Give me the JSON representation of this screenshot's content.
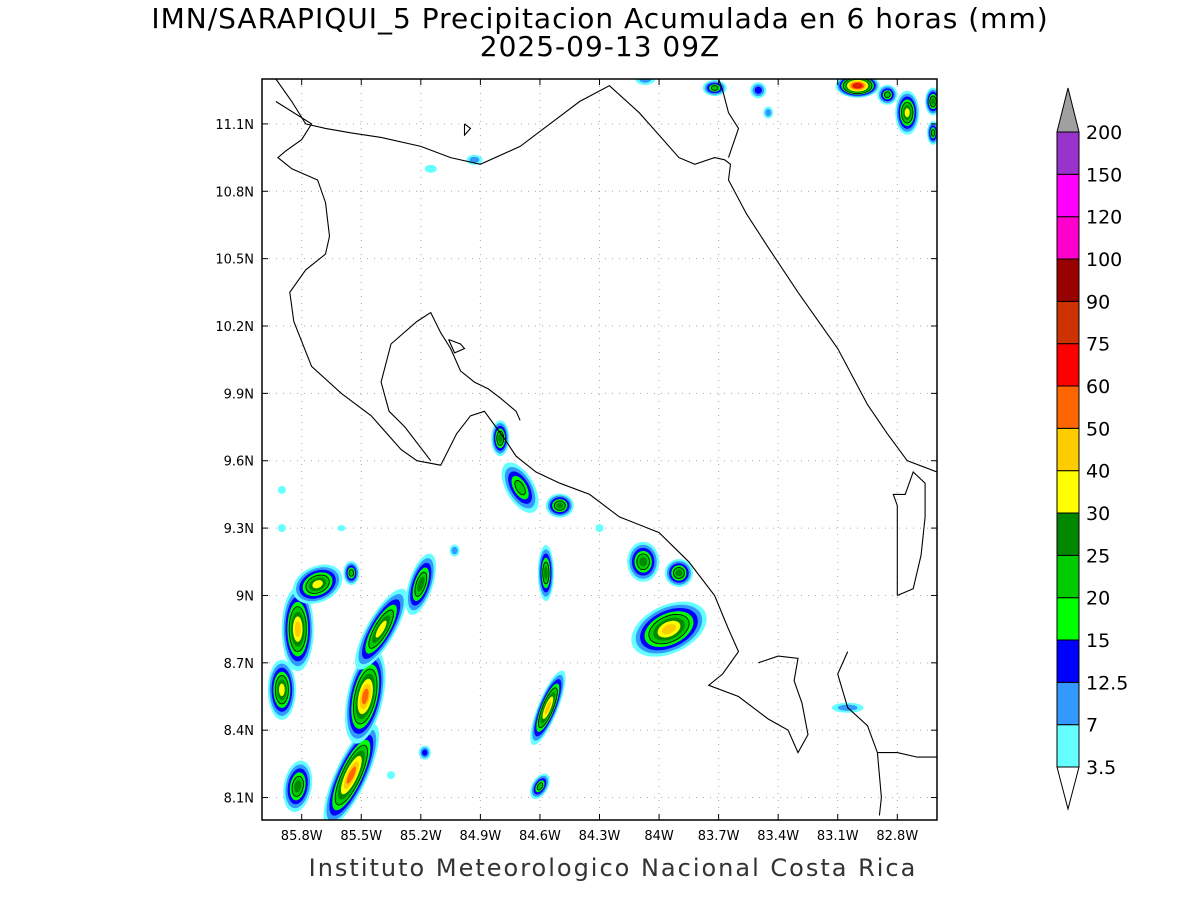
{
  "title": {
    "line1": "IMN/SARAPIQUI_5 Precipitacion Acumulada en 6 horas (mm)",
    "line2": "2025-09-13 09Z"
  },
  "credit": "Instituto Meteorologico Nacional Costa Rica",
  "map": {
    "lon_range": [
      -86.0,
      -82.6
    ],
    "lat_range": [
      8.0,
      11.3
    ],
    "lon_ticks": [
      {
        "value": -85.8,
        "label": "85.8W"
      },
      {
        "value": -85.5,
        "label": "85.5W"
      },
      {
        "value": -85.2,
        "label": "85.2W"
      },
      {
        "value": -84.9,
        "label": "84.9W"
      },
      {
        "value": -84.6,
        "label": "84.6W"
      },
      {
        "value": -84.3,
        "label": "84.3W"
      },
      {
        "value": -84.0,
        "label": "84W"
      },
      {
        "value": -83.7,
        "label": "83.7W"
      },
      {
        "value": -83.4,
        "label": "83.4W"
      },
      {
        "value": -83.1,
        "label": "83.1W"
      },
      {
        "value": -82.8,
        "label": "82.8W"
      }
    ],
    "lat_ticks": [
      {
        "value": 8.1,
        "label": "8.1N"
      },
      {
        "value": 8.4,
        "label": "8.4N"
      },
      {
        "value": 8.7,
        "label": "8.7N"
      },
      {
        "value": 9.0,
        "label": "9N"
      },
      {
        "value": 9.3,
        "label": "9.3N"
      },
      {
        "value": 9.6,
        "label": "9.6N"
      },
      {
        "value": 9.9,
        "label": "9.9N"
      },
      {
        "value": 10.2,
        "label": "10.2N"
      },
      {
        "value": 10.5,
        "label": "10.5N"
      },
      {
        "value": 10.8,
        "label": "10.8N"
      },
      {
        "value": 11.1,
        "label": "11.1N"
      }
    ],
    "grid": true
  },
  "colorbar": {
    "levels": [
      {
        "label": "3.5",
        "color": "#66ffff"
      },
      {
        "label": "7",
        "color": "#3399ff"
      },
      {
        "label": "12.5",
        "color": "#0000ff"
      },
      {
        "label": "15",
        "color": "#00ff00"
      },
      {
        "label": "20",
        "color": "#00cc00"
      },
      {
        "label": "25",
        "color": "#008800"
      },
      {
        "label": "30",
        "color": "#ffff00"
      },
      {
        "label": "40",
        "color": "#ffcc00"
      },
      {
        "label": "50",
        "color": "#ff6600"
      },
      {
        "label": "60",
        "color": "#ff0000"
      },
      {
        "label": "75",
        "color": "#cc3300"
      },
      {
        "label": "90",
        "color": "#990000"
      },
      {
        "label": "100",
        "color": "#ff00cc"
      },
      {
        "label": "120",
        "color": "#ff00ff"
      },
      {
        "label": "150",
        "color": "#9933cc"
      },
      {
        "label": "200",
        "color": "#f5f5f5"
      }
    ],
    "over_color": "#a0a0a0",
    "under_color": "#ffffff"
  },
  "precip_cells": [
    {
      "lon": -85.82,
      "lat": 8.85,
      "rx": 16,
      "ry": 42,
      "rot": 0,
      "max": 40
    },
    {
      "lon": -85.9,
      "lat": 8.58,
      "rx": 14,
      "ry": 30,
      "rot": 0,
      "max": 30
    },
    {
      "lon": -85.72,
      "lat": 9.05,
      "rx": 26,
      "ry": 18,
      "rot": -25,
      "max": 30
    },
    {
      "lon": -85.82,
      "lat": 8.15,
      "rx": 14,
      "ry": 26,
      "rot": 10,
      "max": 25
    },
    {
      "lon": -85.55,
      "lat": 8.2,
      "rx": 16,
      "ry": 56,
      "rot": 25,
      "max": 50
    },
    {
      "lon": -85.48,
      "lat": 8.55,
      "rx": 18,
      "ry": 48,
      "rot": 12,
      "max": 50
    },
    {
      "lon": -85.4,
      "lat": 8.85,
      "rx": 14,
      "ry": 46,
      "rot": 30,
      "max": 30
    },
    {
      "lon": -85.2,
      "lat": 9.05,
      "rx": 12,
      "ry": 32,
      "rot": 18,
      "max": 25
    },
    {
      "lon": -85.55,
      "lat": 9.1,
      "rx": 8,
      "ry": 12,
      "rot": 0,
      "max": 20
    },
    {
      "lon": -85.18,
      "lat": 8.3,
      "rx": 6,
      "ry": 7,
      "rot": 0,
      "max": 12.5
    },
    {
      "lon": -84.8,
      "lat": 9.7,
      "rx": 9,
      "ry": 18,
      "rot": 0,
      "max": 25
    },
    {
      "lon": -84.7,
      "lat": 9.48,
      "rx": 14,
      "ry": 28,
      "rot": -30,
      "max": 20
    },
    {
      "lon": -84.5,
      "lat": 9.4,
      "rx": 14,
      "ry": 12,
      "rot": 0,
      "max": 25
    },
    {
      "lon": -84.57,
      "lat": 9.1,
      "rx": 8,
      "ry": 28,
      "rot": 0,
      "max": 25
    },
    {
      "lon": -84.56,
      "lat": 8.5,
      "rx": 10,
      "ry": 40,
      "rot": 22,
      "max": 40
    },
    {
      "lon": -84.6,
      "lat": 8.15,
      "rx": 8,
      "ry": 14,
      "rot": 30,
      "max": 20
    },
    {
      "lon": -83.95,
      "lat": 8.85,
      "rx": 40,
      "ry": 24,
      "rot": -25,
      "max": 40
    },
    {
      "lon": -84.08,
      "lat": 9.15,
      "rx": 16,
      "ry": 20,
      "rot": 0,
      "max": 25
    },
    {
      "lon": -83.9,
      "lat": 9.1,
      "rx": 14,
      "ry": 14,
      "rot": 0,
      "max": 25
    },
    {
      "lon": -83.05,
      "lat": 8.5,
      "rx": 16,
      "ry": 5,
      "rot": 0,
      "max": 7
    },
    {
      "lon": -84.93,
      "lat": 10.94,
      "rx": 8,
      "ry": 5,
      "rot": 0,
      "max": 7
    },
    {
      "lon": -85.15,
      "lat": 10.9,
      "rx": 6,
      "ry": 4,
      "rot": 0,
      "max": 3.5
    },
    {
      "lon": -84.07,
      "lat": 11.3,
      "rx": 10,
      "ry": 6,
      "rot": 0,
      "max": 7
    },
    {
      "lon": -83.72,
      "lat": 11.26,
      "rx": 12,
      "ry": 8,
      "rot": 0,
      "max": 20
    },
    {
      "lon": -83.5,
      "lat": 11.25,
      "rx": 8,
      "ry": 8,
      "rot": 0,
      "max": 12.5
    },
    {
      "lon": -83.0,
      "lat": 11.27,
      "rx": 22,
      "ry": 12,
      "rot": 0,
      "max": 75
    },
    {
      "lon": -82.85,
      "lat": 11.23,
      "rx": 10,
      "ry": 10,
      "rot": 0,
      "max": 20
    },
    {
      "lon": -82.75,
      "lat": 11.15,
      "rx": 12,
      "ry": 22,
      "rot": 0,
      "max": 30
    },
    {
      "lon": -82.62,
      "lat": 11.2,
      "rx": 8,
      "ry": 14,
      "rot": 0,
      "max": 25
    },
    {
      "lon": -82.62,
      "lat": 11.06,
      "rx": 6,
      "ry": 12,
      "rot": 0,
      "max": 20
    },
    {
      "lon": -83.45,
      "lat": 11.15,
      "rx": 5,
      "ry": 6,
      "rot": 0,
      "max": 7
    },
    {
      "lon": -85.9,
      "lat": 9.47,
      "rx": 4,
      "ry": 4,
      "rot": 0,
      "max": 3.5
    },
    {
      "lon": -85.9,
      "lat": 9.3,
      "rx": 4,
      "ry": 4,
      "rot": 0,
      "max": 3.5
    },
    {
      "lon": -85.03,
      "lat": 9.2,
      "rx": 5,
      "ry": 6,
      "rot": 0,
      "max": 7
    },
    {
      "lon": -84.3,
      "lat": 9.3,
      "rx": 4,
      "ry": 4,
      "rot": 0,
      "max": 3.5
    },
    {
      "lon": -85.35,
      "lat": 8.2,
      "rx": 4,
      "ry": 4,
      "rot": 0,
      "max": 3.5
    },
    {
      "lon": -85.6,
      "lat": 9.3,
      "rx": 4,
      "ry": 3,
      "rot": 0,
      "max": 3.5
    }
  ],
  "coastlines": [
    [
      [
        -85.93,
        11.3
      ],
      [
        -85.85,
        11.2
      ],
      [
        -85.78,
        11.1
      ],
      [
        -85.68,
        11.08
      ],
      [
        -85.55,
        11.06
      ],
      [
        -85.4,
        11.04
      ],
      [
        -85.2,
        11.0
      ],
      [
        -85.05,
        10.95
      ],
      [
        -84.9,
        10.92
      ],
      [
        -84.7,
        11.0
      ],
      [
        -84.55,
        11.1
      ],
      [
        -84.4,
        11.2
      ],
      [
        -84.25,
        11.27
      ],
      [
        -84.1,
        11.15
      ],
      [
        -84.0,
        11.05
      ],
      [
        -83.9,
        10.95
      ],
      [
        -83.82,
        10.92
      ],
      [
        -83.72,
        10.95
      ],
      [
        -83.67,
        10.94
      ],
      [
        -83.64,
        10.92
      ],
      [
        -83.65,
        10.85
      ],
      [
        -83.62,
        10.8
      ],
      [
        -83.56,
        10.7
      ],
      [
        -83.45,
        10.55
      ],
      [
        -83.3,
        10.35
      ],
      [
        -83.1,
        10.1
      ],
      [
        -82.95,
        9.85
      ],
      [
        -82.85,
        9.72
      ],
      [
        -82.75,
        9.6
      ],
      [
        -82.6,
        9.55
      ]
    ],
    [
      [
        -83.7,
        11.3
      ],
      [
        -83.68,
        11.25
      ],
      [
        -83.65,
        11.15
      ],
      [
        -83.6,
        11.08
      ],
      [
        -83.65,
        10.95
      ]
    ],
    [
      [
        -85.93,
        11.2
      ],
      [
        -85.75,
        11.1
      ],
      [
        -85.8,
        11.03
      ],
      [
        -85.88,
        10.98
      ],
      [
        -85.92,
        10.95
      ],
      [
        -85.85,
        10.9
      ],
      [
        -85.72,
        10.85
      ],
      [
        -85.68,
        10.75
      ],
      [
        -85.66,
        10.6
      ],
      [
        -85.68,
        10.52
      ],
      [
        -85.78,
        10.45
      ],
      [
        -85.86,
        10.35
      ],
      [
        -85.84,
        10.22
      ],
      [
        -85.75,
        10.02
      ],
      [
        -85.6,
        9.9
      ],
      [
        -85.45,
        9.8
      ],
      [
        -85.3,
        9.65
      ],
      [
        -85.22,
        9.6
      ],
      [
        -85.1,
        9.58
      ],
      [
        -85.02,
        9.72
      ],
      [
        -84.95,
        9.8
      ],
      [
        -84.88,
        9.82
      ],
      [
        -84.78,
        9.7
      ],
      [
        -84.72,
        9.62
      ],
      [
        -84.62,
        9.55
      ],
      [
        -84.5,
        9.5
      ],
      [
        -84.35,
        9.45
      ],
      [
        -84.2,
        9.35
      ],
      [
        -84.0,
        9.28
      ],
      [
        -83.85,
        9.15
      ],
      [
        -83.72,
        9.0
      ],
      [
        -83.65,
        8.85
      ],
      [
        -83.6,
        8.75
      ],
      [
        -83.68,
        8.65
      ],
      [
        -83.75,
        8.6
      ],
      [
        -83.6,
        8.55
      ],
      [
        -83.45,
        8.45
      ],
      [
        -83.35,
        8.4
      ],
      [
        -83.3,
        8.3
      ],
      [
        -83.25,
        8.38
      ],
      [
        -83.28,
        8.52
      ],
      [
        -83.32,
        8.62
      ],
      [
        -83.3,
        8.72
      ],
      [
        -83.4,
        8.73
      ],
      [
        -83.5,
        8.7
      ]
    ],
    [
      [
        -83.05,
        8.75
      ],
      [
        -83.1,
        8.65
      ],
      [
        -83.05,
        8.5
      ],
      [
        -82.95,
        8.42
      ],
      [
        -82.9,
        8.3
      ],
      [
        -82.88,
        8.1
      ],
      [
        -82.89,
        8.02
      ]
    ],
    [
      [
        -82.6,
        8.28
      ],
      [
        -82.7,
        8.28
      ],
      [
        -82.8,
        8.3
      ],
      [
        -82.9,
        8.3
      ]
    ],
    [
      [
        -85.15,
        9.6
      ],
      [
        -85.15,
        9.6
      ],
      [
        -85.28,
        9.75
      ],
      [
        -85.36,
        9.82
      ],
      [
        -85.4,
        9.95
      ],
      [
        -85.35,
        10.12
      ],
      [
        -85.22,
        10.22
      ],
      [
        -85.15,
        10.26
      ],
      [
        -85.1,
        10.17
      ],
      [
        -85.05,
        10.1
      ],
      [
        -85.0,
        10.0
      ],
      [
        -84.93,
        9.95
      ],
      [
        -84.86,
        9.92
      ],
      [
        -84.8,
        9.88
      ],
      [
        -84.72,
        9.82
      ],
      [
        -84.7,
        9.78
      ]
    ],
    [
      [
        -85.06,
        10.14
      ],
      [
        -85.0,
        10.12
      ],
      [
        -84.98,
        10.1
      ],
      [
        -85.03,
        10.08
      ],
      [
        -85.06,
        10.14
      ]
    ],
    [
      [
        -82.8,
        9.0
      ],
      [
        -82.72,
        9.03
      ],
      [
        -82.68,
        9.18
      ],
      [
        -82.66,
        9.35
      ],
      [
        -82.66,
        9.5
      ],
      [
        -82.72,
        9.55
      ],
      [
        -82.76,
        9.45
      ],
      [
        -82.82,
        9.45
      ],
      [
        -82.8,
        9.4
      ],
      [
        -82.8,
        9.0
      ]
    ],
    [
      [
        -84.98,
        11.1
      ],
      [
        -84.95,
        11.08
      ],
      [
        -84.98,
        11.05
      ],
      [
        -84.98,
        11.1
      ]
    ]
  ]
}
